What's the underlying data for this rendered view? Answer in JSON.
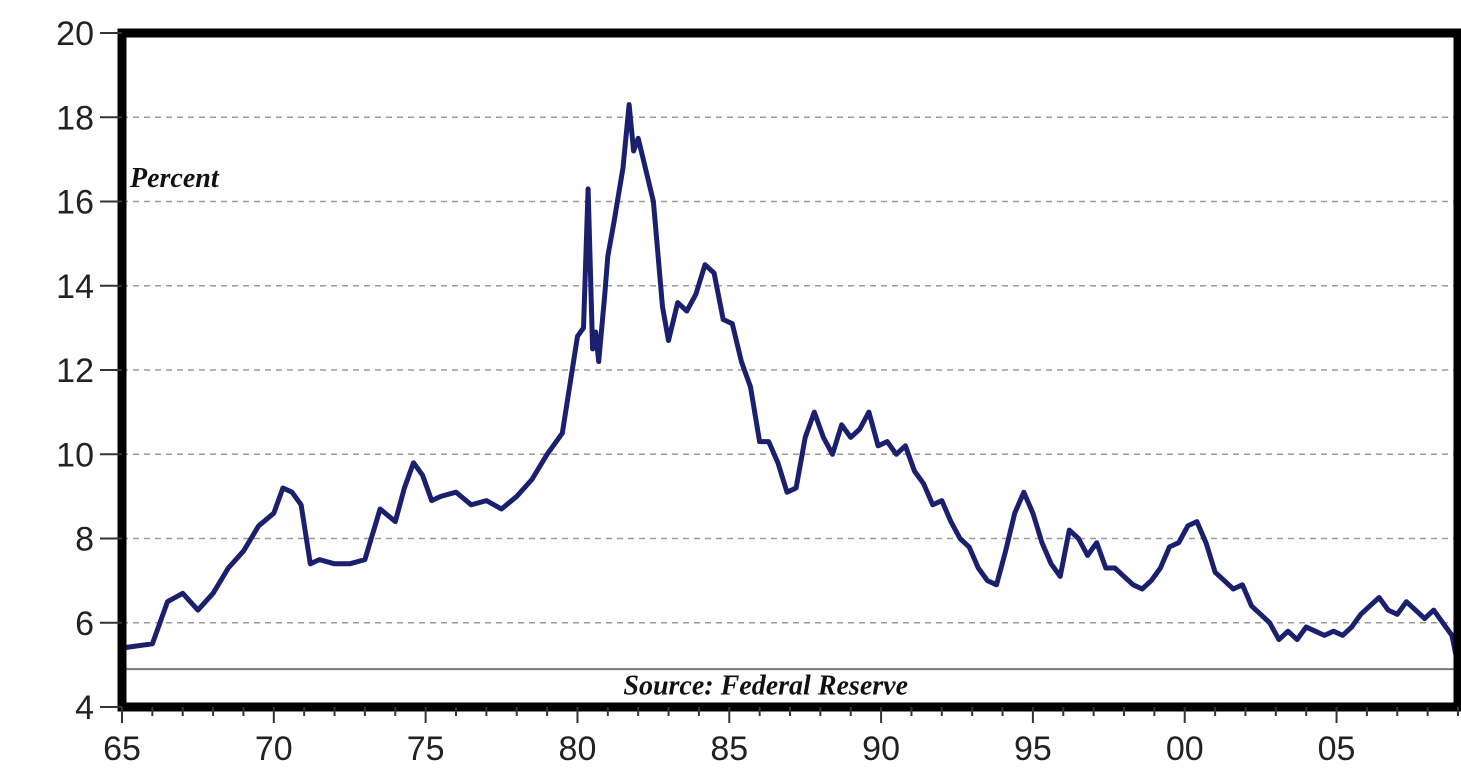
{
  "chart_data": {
    "type": "line",
    "title": "",
    "xlabel": "",
    "ylabel": "",
    "annotations": {
      "unit": "Percent",
      "source": "Source: Federal Reserve"
    },
    "xlim": [
      1965,
      2009
    ],
    "ylim": [
      4,
      20
    ],
    "x_ticks": [
      1965,
      1970,
      1975,
      1980,
      1985,
      1990,
      1995,
      2000,
      2005
    ],
    "x_tick_labels": [
      "65",
      "70",
      "75",
      "80",
      "85",
      "90",
      "95",
      "00",
      "05"
    ],
    "y_ticks": [
      4,
      6,
      8,
      10,
      12,
      14,
      16,
      18,
      20
    ],
    "y_tick_labels": [
      "4",
      "6",
      "8",
      "10",
      "12",
      "14",
      "16",
      "18",
      "20"
    ],
    "grid": "horizontal dashed",
    "baseline": 4.9,
    "series": [
      {
        "color": "#1a1f6e",
        "x": [
          1965.0,
          1966.0,
          1966.5,
          1967.0,
          1967.5,
          1968.0,
          1968.5,
          1969.0,
          1969.5,
          1970.0,
          1970.3,
          1970.6,
          1970.9,
          1971.2,
          1971.5,
          1972.0,
          1972.5,
          1973.0,
          1973.5,
          1974.0,
          1974.3,
          1974.6,
          1974.9,
          1975.2,
          1975.5,
          1976.0,
          1976.5,
          1977.0,
          1977.5,
          1978.0,
          1978.5,
          1979.0,
          1979.5,
          1980.0,
          1980.2,
          1980.35,
          1980.5,
          1980.6,
          1980.7,
          1980.9,
          1981.0,
          1981.2,
          1981.5,
          1981.7,
          1981.85,
          1982.0,
          1982.2,
          1982.5,
          1982.8,
          1983.0,
          1983.3,
          1983.6,
          1983.9,
          1984.2,
          1984.5,
          1984.8,
          1985.1,
          1985.4,
          1985.7,
          1986.0,
          1986.3,
          1986.6,
          1986.9,
          1987.2,
          1987.5,
          1987.8,
          1988.1,
          1988.4,
          1988.7,
          1989.0,
          1989.3,
          1989.6,
          1989.9,
          1990.2,
          1990.5,
          1990.8,
          1991.1,
          1991.4,
          1991.7,
          1992.0,
          1992.3,
          1992.6,
          1992.9,
          1993.2,
          1993.5,
          1993.8,
          1994.1,
          1994.4,
          1994.7,
          1995.0,
          1995.3,
          1995.6,
          1995.9,
          1996.2,
          1996.5,
          1996.8,
          1997.1,
          1997.4,
          1997.7,
          1998.0,
          1998.3,
          1998.6,
          1998.9,
          1999.2,
          1999.5,
          1999.8,
          2000.1,
          2000.4,
          2000.7,
          2001.0,
          2001.3,
          2001.6,
          2001.9,
          2002.2,
          2002.5,
          2002.8,
          2003.1,
          2003.4,
          2003.7,
          2004.0,
          2004.3,
          2004.6,
          2004.9,
          2005.2,
          2005.5,
          2005.8,
          2006.1,
          2006.4,
          2006.7,
          2007.0,
          2007.3,
          2007.6,
          2007.9,
          2008.2,
          2008.5,
          2008.8,
          2009.0
        ],
        "values": [
          5.4,
          5.5,
          6.5,
          6.7,
          6.3,
          6.7,
          7.3,
          7.7,
          8.3,
          8.6,
          9.2,
          9.1,
          8.8,
          7.4,
          7.5,
          7.4,
          7.4,
          7.5,
          8.7,
          8.4,
          9.2,
          9.8,
          9.5,
          8.9,
          9.0,
          9.1,
          8.8,
          8.9,
          8.7,
          9.0,
          9.4,
          10.0,
          10.5,
          12.8,
          13.0,
          16.3,
          12.5,
          12.9,
          12.2,
          13.8,
          14.7,
          15.5,
          16.8,
          18.3,
          17.2,
          17.5,
          16.9,
          16.0,
          13.5,
          12.7,
          13.6,
          13.4,
          13.8,
          14.5,
          14.3,
          13.2,
          13.1,
          12.2,
          11.6,
          10.3,
          10.3,
          9.8,
          9.1,
          9.2,
          10.4,
          11.0,
          10.4,
          10.0,
          10.7,
          10.4,
          10.6,
          11.0,
          10.2,
          10.3,
          10.0,
          10.2,
          9.6,
          9.3,
          8.8,
          8.9,
          8.4,
          8.0,
          7.8,
          7.3,
          7.0,
          6.9,
          7.7,
          8.6,
          9.1,
          8.6,
          7.9,
          7.4,
          7.1,
          8.2,
          8.0,
          7.6,
          7.9,
          7.3,
          7.3,
          7.1,
          6.9,
          6.8,
          7.0,
          7.3,
          7.8,
          7.9,
          8.3,
          8.4,
          7.9,
          7.2,
          7.0,
          6.8,
          6.9,
          6.4,
          6.2,
          6.0,
          5.6,
          5.8,
          5.6,
          5.9,
          5.8,
          5.7,
          5.8,
          5.7,
          5.9,
          6.2,
          6.4,
          6.6,
          6.3,
          6.2,
          6.5,
          6.3,
          6.1,
          6.3,
          6.0,
          5.7,
          5.0
        ]
      }
    ]
  }
}
